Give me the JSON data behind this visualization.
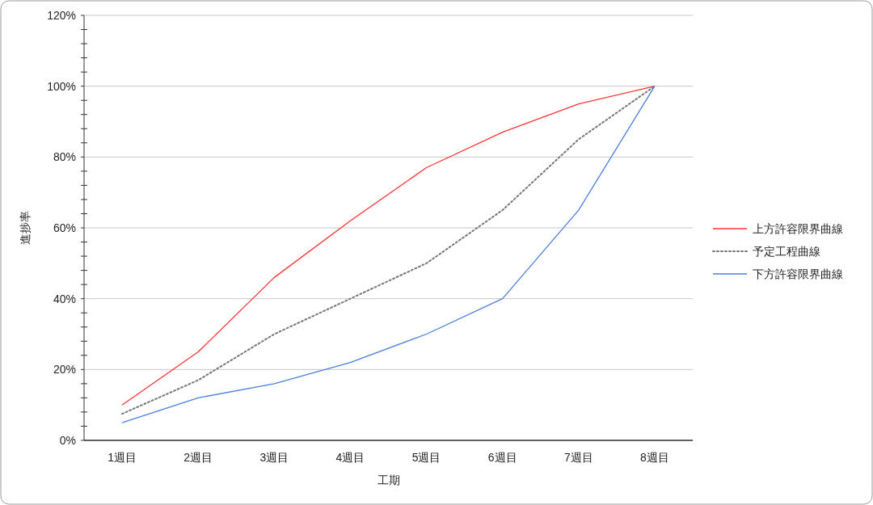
{
  "chart_data": {
    "type": "line",
    "xlabel": "工期",
    "ylabel": "進捗率",
    "categories": [
      "1週目",
      "2週目",
      "3週目",
      "4週目",
      "5週目",
      "6週目",
      "7週目",
      "8週目"
    ],
    "series": [
      {
        "name": "上方許容限界曲線",
        "color": "#ff3333",
        "values": [
          10,
          25,
          46,
          62,
          77,
          87,
          95,
          100
        ]
      },
      {
        "name": "予定工程曲線",
        "color": "#777777",
        "line_style": "dotted",
        "values": [
          7.5,
          17,
          30,
          40,
          50,
          65,
          85,
          100
        ]
      },
      {
        "name": "下方許容限界曲線",
        "color": "#4a7fdc",
        "values": [
          5,
          12,
          16,
          22,
          30,
          40,
          65,
          100
        ]
      }
    ],
    "ylim": [
      0,
      120
    ],
    "yticks": [
      {
        "value": 0,
        "label": "0%"
      },
      {
        "value": 4,
        "label": null
      },
      {
        "value": 8,
        "label": null
      },
      {
        "value": 12,
        "label": null
      },
      {
        "value": 16,
        "label": null
      },
      {
        "value": 20,
        "label": "20%"
      },
      {
        "value": 24,
        "label": null
      },
      {
        "value": 28,
        "label": null
      },
      {
        "value": 32,
        "label": null
      },
      {
        "value": 36,
        "label": null
      },
      {
        "value": 40,
        "label": "40%"
      },
      {
        "value": 44,
        "label": null
      },
      {
        "value": 48,
        "label": null
      },
      {
        "value": 52,
        "label": null
      },
      {
        "value": 56,
        "label": null
      },
      {
        "value": 60,
        "label": "60%"
      },
      {
        "value": 64,
        "label": null
      },
      {
        "value": 68,
        "label": null
      },
      {
        "value": 72,
        "label": null
      },
      {
        "value": 76,
        "label": null
      },
      {
        "value": 80,
        "label": "80%"
      },
      {
        "value": 84,
        "label": null
      },
      {
        "value": 88,
        "label": null
      },
      {
        "value": 92,
        "label": null
      },
      {
        "value": 96,
        "label": null
      },
      {
        "value": 100,
        "label": "100%"
      },
      {
        "value": 104,
        "label": null
      },
      {
        "value": 108,
        "label": null
      },
      {
        "value": 112,
        "label": null
      },
      {
        "value": 116,
        "label": null
      },
      {
        "value": 120,
        "label": "120%"
      }
    ],
    "grid": "y",
    "legend": "right",
    "marker": "none",
    "line_style": "solid"
  }
}
